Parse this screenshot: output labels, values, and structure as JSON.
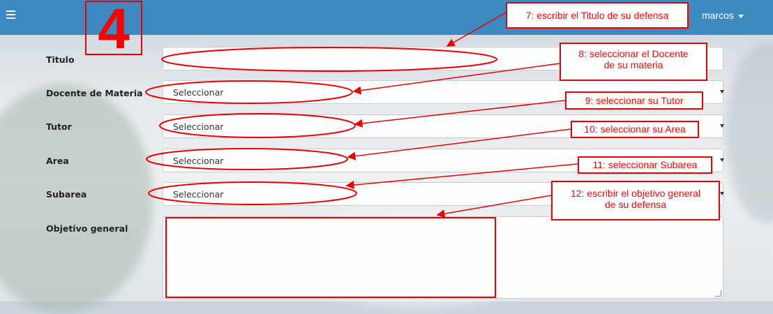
{
  "header": {
    "user_name": "marcos"
  },
  "step_number": "4",
  "form": {
    "titulo_label": "Titulo",
    "docente_label": "Docente de Materia",
    "tutor_label": "Tutor",
    "area_label": "Area",
    "subarea_label": "Subarea",
    "objetivo_label": "Objetivo general",
    "docente_value": "Seleccionar",
    "tutor_value": "Seleccionar",
    "area_value": "Seleccionar",
    "subarea_value": "Seleccionar",
    "titulo_value": "",
    "objetivo_value": ""
  },
  "annotations": {
    "note7": "7: escribir el Titulo de su defensa",
    "note8": "8: seleccionar el Docente\nde su materia",
    "note9": "9: seleccionar su Tutor",
    "note10": "10: seleccionar su Area",
    "note11": "11: seleccionar Subarea",
    "note12": "12: escribir el objetivo general\nde su  defensa"
  },
  "colors": {
    "header_bg": "#3e8ac0",
    "annotation": "#ff0000"
  }
}
